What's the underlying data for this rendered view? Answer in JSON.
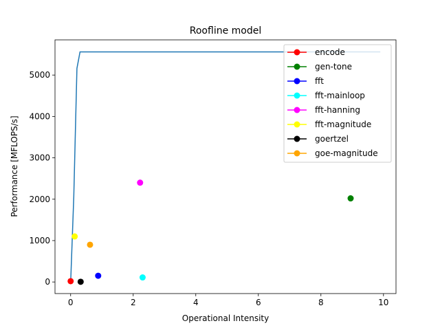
{
  "chart_data": {
    "type": "scatter",
    "title": "Roofline model",
    "xlabel": "Operational Intensity",
    "ylabel": "Performance [MFLOPS/s]",
    "xlim": [
      -0.5,
      10.4
    ],
    "ylim": [
      -280,
      5850
    ],
    "xticks": [
      0,
      2,
      4,
      6,
      8,
      10
    ],
    "yticks": [
      0,
      1000,
      2000,
      3000,
      4000,
      5000
    ],
    "grid": false,
    "legend_position": "top-right",
    "roofline": {
      "color": "#1f77b4",
      "x": [
        0,
        0.1,
        0.2,
        0.3,
        9.9
      ],
      "y": [
        0,
        2050,
        5160,
        5560,
        5560
      ]
    },
    "series": [
      {
        "name": "encode",
        "color": "#ff0000",
        "x": 0.0,
        "y": 20
      },
      {
        "name": "gen-tone",
        "color": "#008000",
        "x": 8.95,
        "y": 2020
      },
      {
        "name": "fft",
        "color": "#0000ff",
        "x": 0.88,
        "y": 150
      },
      {
        "name": "fft-mainloop",
        "color": "#00ffff",
        "x": 2.3,
        "y": 110
      },
      {
        "name": "fft-hanning",
        "color": "#ff00ff",
        "x": 2.22,
        "y": 2400
      },
      {
        "name": "fft-magnitude",
        "color": "#ffff00",
        "x": 0.13,
        "y": 1100
      },
      {
        "name": "goertzel",
        "color": "#000000",
        "x": 0.32,
        "y": 5
      },
      {
        "name": "goe-magnitude",
        "color": "#ffa500",
        "x": 0.62,
        "y": 900
      }
    ]
  }
}
